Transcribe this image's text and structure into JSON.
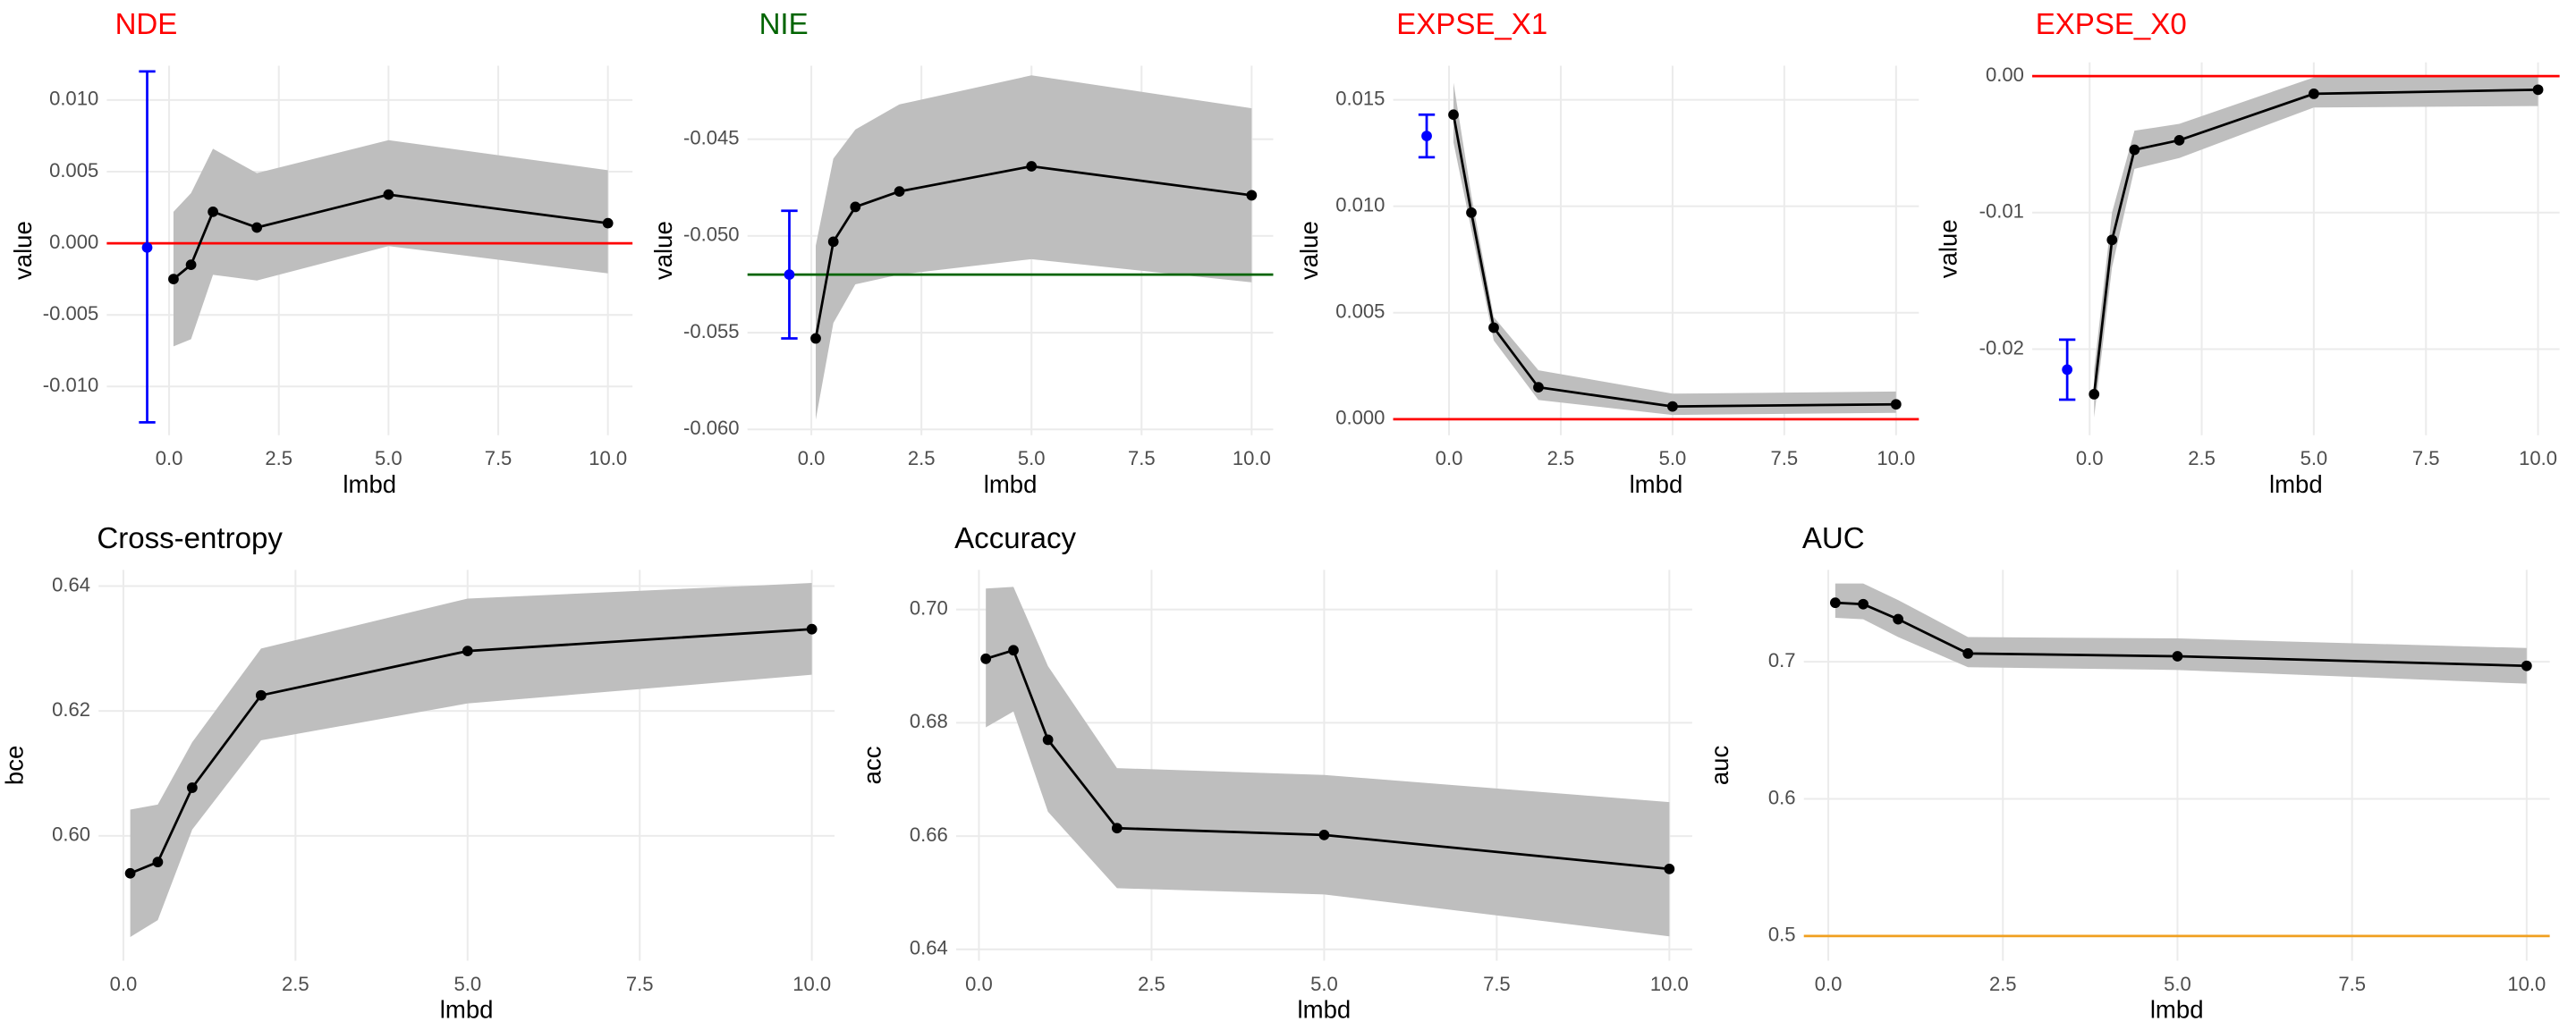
{
  "chart_data": [
    {
      "type": "line",
      "title": "NDE",
      "title_color": "#ff0000",
      "x_label": "lmbd",
      "y_label": "value",
      "grid": true,
      "x": [
        0.1,
        0.5,
        1,
        2,
        5,
        10
      ],
      "values": [
        -0.0025,
        -0.0015,
        0.0022,
        0.0011,
        0.0034,
        0.0014
      ],
      "lower": [
        -0.0072,
        -0.0067,
        -0.0022,
        -0.0026,
        -0.0002,
        -0.0021
      ],
      "upper": [
        0.0022,
        0.0035,
        0.0066,
        0.0049,
        0.0072,
        0.0051
      ],
      "color": "#000000",
      "band_color": "#bebebe",
      "ref_point": {
        "x": -0.5,
        "value": -0.0003,
        "low": -0.0125,
        "high": 0.012,
        "color": "#0000ff"
      },
      "ref_line": {
        "value": 0,
        "color": "#ff0000"
      },
      "xlim": [
        -1.42,
        10.56
      ],
      "ylim": [
        -0.0134,
        0.0124
      ],
      "xticks": [
        {
          "value": 0,
          "label": "0.0"
        },
        2.5,
        {
          "value": 5,
          "label": "5.0"
        },
        7.5,
        {
          "value": 10,
          "label": "10.0"
        }
      ],
      "yticks": [
        {
          "value": 0.01,
          "label": "0.010"
        },
        0.005,
        {
          "value": 0,
          "label": "0.000"
        },
        -0.005,
        {
          "value": -0.01,
          "label": "-0.010"
        }
      ]
    },
    {
      "type": "line",
      "title": "NIE",
      "title_color": "#006400",
      "x_label": "lmbd",
      "y_label": "value",
      "grid": true,
      "x": [
        0.1,
        0.5,
        1,
        2,
        5,
        10
      ],
      "values": [
        -0.0553,
        -0.0503,
        -0.0485,
        -0.0477,
        -0.0464,
        -0.0479
      ],
      "lower": [
        -0.0595,
        -0.0545,
        -0.0525,
        -0.052,
        -0.0512,
        -0.0524
      ],
      "upper": [
        -0.0505,
        -0.046,
        -0.0445,
        -0.0432,
        -0.0417,
        -0.0434
      ],
      "color": "#000000",
      "band_color": "#bebebe",
      "ref_point": {
        "x": -0.5,
        "value": -0.052,
        "low": -0.0553,
        "high": -0.0487,
        "color": "#0000ff"
      },
      "ref_line": {
        "value": -0.052,
        "color": "#006400"
      },
      "xlim": [
        -1.45,
        10.49
      ],
      "ylim": [
        -0.0603,
        -0.0412
      ],
      "xticks": [
        {
          "value": 0,
          "label": "0.0"
        },
        2.5,
        {
          "value": 5,
          "label": "5.0"
        },
        7.5,
        {
          "value": 10,
          "label": "10.0"
        }
      ],
      "yticks": [
        -0.045,
        {
          "value": -0.05,
          "label": "-0.050"
        },
        -0.055,
        {
          "value": -0.06,
          "label": "-0.060"
        }
      ]
    },
    {
      "type": "line",
      "title": "EXPSE_X1",
      "title_color": "#ff0000",
      "x_label": "lmbd",
      "y_label": "value",
      "grid": true,
      "x": [
        0.1,
        0.5,
        1,
        2,
        5,
        10
      ],
      "values": [
        0.0143,
        0.0097,
        0.0043,
        0.0015,
        0.0006,
        0.0007
      ],
      "lower": [
        0.013,
        0.0089,
        0.0037,
        0.0009,
        0.0002,
        0.0003
      ],
      "upper": [
        0.0158,
        0.0105,
        0.0048,
        0.0023,
        0.0012,
        0.0013
      ],
      "color": "#000000",
      "band_color": "#bebebe",
      "ref_point": {
        "x": -0.5,
        "value": 0.0133,
        "low": 0.0123,
        "high": 0.0143,
        "color": "#0000ff"
      },
      "ref_line": {
        "value": 0,
        "color": "#ff0000"
      },
      "xlim": [
        -1.25,
        10.51
      ],
      "ylim": [
        -0.00075,
        0.0166
      ],
      "xticks": [
        {
          "value": 0,
          "label": "0.0"
        },
        2.5,
        {
          "value": 5,
          "label": "5.0"
        },
        7.5,
        {
          "value": 10,
          "label": "10.0"
        }
      ],
      "yticks": [
        0.015,
        {
          "value": 0.01,
          "label": "0.010"
        },
        0.005,
        {
          "value": 0,
          "label": "0.000"
        }
      ]
    },
    {
      "type": "line",
      "title": "EXPSE_X0",
      "title_color": "#ff0000",
      "x_label": "lmbd",
      "y_label": "value",
      "grid": true,
      "x": [
        0.1,
        0.5,
        1,
        2,
        5,
        10
      ],
      "values": [
        -0.0233,
        -0.012,
        -0.0054,
        -0.0047,
        -0.0013,
        -0.001
      ],
      "lower": [
        -0.025,
        -0.014,
        -0.0068,
        -0.006,
        -0.0023,
        -0.0022
      ],
      "upper": [
        -0.0215,
        -0.01,
        -0.004,
        -0.0035,
        -0.0001,
        0
      ],
      "color": "#000000",
      "band_color": "#bebebe",
      "ref_point": {
        "x": -0.5,
        "value": -0.0215,
        "low": -0.0237,
        "high": -0.0193,
        "color": "#0000ff"
      },
      "ref_line": {
        "value": 0,
        "color": "#ff0000"
      },
      "xlim": [
        -1.28,
        10.48
      ],
      "ylim": [
        -0.0263,
        0.001
      ],
      "xticks": [
        {
          "value": 0,
          "label": "0.0"
        },
        2.5,
        {
          "value": 5,
          "label": "5.0"
        },
        7.5,
        {
          "value": 10,
          "label": "10.0"
        }
      ],
      "yticks": [
        {
          "value": 0,
          "label": "0.00"
        },
        -0.01,
        -0.02
      ]
    },
    {
      "type": "line",
      "title": "Cross-entropy",
      "title_color": "#000000",
      "x_label": "lmbd",
      "y_label": "bce",
      "grid": true,
      "x": [
        0.1,
        0.5,
        1,
        2,
        5,
        10
      ],
      "values": [
        0.594,
        0.5958,
        0.6077,
        0.6225,
        0.6296,
        0.6331
      ],
      "lower": [
        0.5838,
        0.5865,
        0.601,
        0.6153,
        0.6212,
        0.6258
      ],
      "upper": [
        0.6042,
        0.605,
        0.615,
        0.63,
        0.638,
        0.6405
      ],
      "color": "#000000",
      "band_color": "#bebebe",
      "xlim": [
        -0.36,
        10.33
      ],
      "ylim": [
        0.58,
        0.6426
      ],
      "xticks": [
        {
          "value": 0,
          "label": "0.0"
        },
        2.5,
        {
          "value": 5,
          "label": "5.0"
        },
        7.5,
        {
          "value": 10,
          "label": "10.0"
        }
      ],
      "yticks": [
        0.64,
        0.62,
        {
          "value": 0.6,
          "label": "0.60"
        }
      ]
    },
    {
      "type": "line",
      "title": "Accuracy",
      "title_color": "#000000",
      "x_label": "lmbd",
      "y_label": "acc",
      "grid": true,
      "x": [
        0.1,
        0.5,
        1,
        2,
        5,
        10
      ],
      "values": [
        0.6913,
        0.6928,
        0.677,
        0.6614,
        0.6602,
        0.6542
      ],
      "lower": [
        0.6792,
        0.682,
        0.6643,
        0.6508,
        0.6497,
        0.6423
      ],
      "upper": [
        0.7037,
        0.704,
        0.69,
        0.672,
        0.6708,
        0.666
      ],
      "color": "#000000",
      "band_color": "#bebebe",
      "xlim": [
        -0.33,
        10.33
      ],
      "ylim": [
        0.638,
        0.707
      ],
      "xticks": [
        {
          "value": 0,
          "label": "0.0"
        },
        2.5,
        {
          "value": 5,
          "label": "5.0"
        },
        7.5,
        {
          "value": 10,
          "label": "10.0"
        }
      ],
      "yticks": [
        {
          "value": 0.7,
          "label": "0.70"
        },
        0.68,
        0.66,
        0.64
      ]
    },
    {
      "type": "line",
      "title": "AUC",
      "title_color": "#000000",
      "x_label": "lmbd",
      "y_label": "auc",
      "grid": true,
      "x": [
        0.1,
        0.5,
        1,
        2,
        5,
        10
      ],
      "values": [
        0.743,
        0.742,
        0.731,
        0.706,
        0.704,
        0.697
      ],
      "lower": [
        0.732,
        0.731,
        0.718,
        0.696,
        0.694,
        0.684
      ],
      "upper": [
        0.757,
        0.757,
        0.745,
        0.718,
        0.717,
        0.71
      ],
      "color": "#000000",
      "band_color": "#bebebe",
      "ref_line": {
        "value": 0.5,
        "color": "#f0a020"
      },
      "xlim": [
        -0.35,
        10.33
      ],
      "ylim": [
        0.482,
        0.767
      ],
      "xticks": [
        {
          "value": 0,
          "label": "0.0"
        },
        2.5,
        {
          "value": 5,
          "label": "5.0"
        },
        7.5,
        {
          "value": 10,
          "label": "10.0"
        }
      ],
      "yticks": [
        0.7,
        0.6,
        0.5
      ]
    }
  ]
}
